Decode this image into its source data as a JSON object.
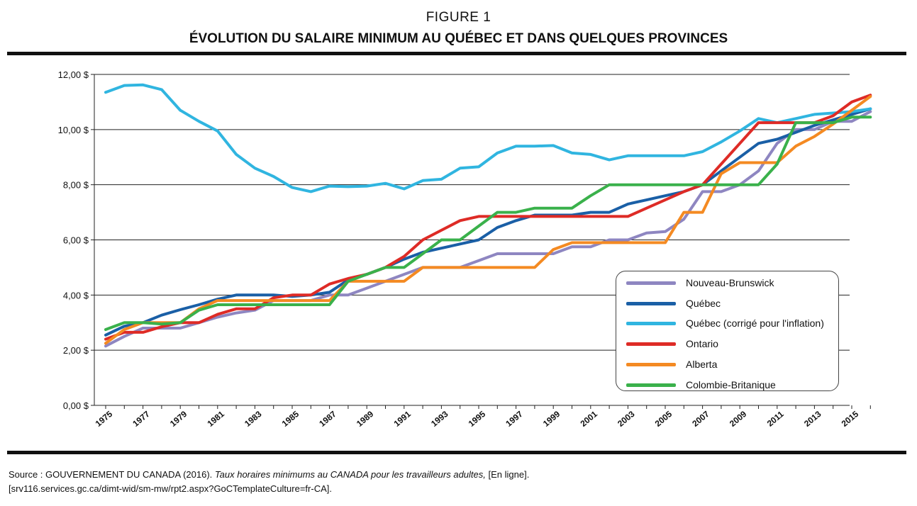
{
  "figure_label": "FIGURE 1",
  "title": "ÉVOLUTION DU SALAIRE MINIMUM AU QUÉBEC ET DANS QUELQUES PROVINCES",
  "source": {
    "prefix": "Source : GOUVERNEMENT DU CANADA (2016). ",
    "italic": "Taux horaires minimums au CANADA pour les travailleurs adultes,",
    "suffix": " [En ligne].",
    "line2": "[srv116.services.gc.ca/dimt-wid/sm-mw/rpt2.aspx?GoCTemplateCulture=fr-CA]."
  },
  "chart_data": {
    "type": "line",
    "title": "ÉVOLUTION DU SALAIRE MINIMUM AU QUÉBEC ET DANS QUELQUES PROVINCES",
    "xlabel": "",
    "ylabel": "",
    "ylim": [
      0,
      12
    ],
    "xlim": [
      1975,
      2016
    ],
    "y_ticks": [
      0,
      2,
      4,
      6,
      8,
      10,
      12
    ],
    "y_tick_labels": [
      "0,00 $",
      "2,00 $",
      "4,00 $",
      "6,00 $",
      "8,00 $",
      "10,00 $",
      "12,00 $"
    ],
    "x_tick_labels": [
      "1975",
      "1977",
      "1979",
      "1981",
      "1983",
      "1985",
      "1987",
      "1989",
      "1991",
      "1993",
      "1995",
      "1997",
      "1999",
      "2001",
      "2003",
      "2005",
      "2007",
      "2009",
      "2011",
      "2013",
      "2015"
    ],
    "grid": "horizontal",
    "legend_position": "bottom-right",
    "x": [
      1975,
      1976,
      1977,
      1978,
      1979,
      1980,
      1981,
      1982,
      1983,
      1984,
      1985,
      1986,
      1987,
      1988,
      1989,
      1990,
      1991,
      1992,
      1993,
      1994,
      1995,
      1996,
      1997,
      1998,
      1999,
      2000,
      2001,
      2002,
      2003,
      2004,
      2005,
      2006,
      2007,
      2008,
      2009,
      2010,
      2011,
      2012,
      2013,
      2014,
      2015,
      2016
    ],
    "series": [
      {
        "name": "Nouveau-Brunswick",
        "color": "#8e86c1",
        "values": [
          2.15,
          2.5,
          2.8,
          2.8,
          2.8,
          3.0,
          3.2,
          3.35,
          3.45,
          3.8,
          3.8,
          3.8,
          4.0,
          4.0,
          4.25,
          4.5,
          4.75,
          5.0,
          5.0,
          5.0,
          5.25,
          5.5,
          5.5,
          5.5,
          5.5,
          5.75,
          5.75,
          6.0,
          6.0,
          6.25,
          6.3,
          6.75,
          7.75,
          7.75,
          8.0,
          8.5,
          9.5,
          10.0,
          10.0,
          10.3,
          10.3,
          10.65
        ]
      },
      {
        "name": "Québec",
        "color": "#1a5fa6",
        "values": [
          2.55,
          2.87,
          3.0,
          3.27,
          3.47,
          3.65,
          3.85,
          4.0,
          4.0,
          4.0,
          3.95,
          4.0,
          4.1,
          4.55,
          4.75,
          5.0,
          5.3,
          5.55,
          5.7,
          5.85,
          6.0,
          6.45,
          6.7,
          6.9,
          6.9,
          6.9,
          7.0,
          7.0,
          7.3,
          7.45,
          7.6,
          7.75,
          8.0,
          8.5,
          9.0,
          9.5,
          9.65,
          9.9,
          10.15,
          10.35,
          10.55,
          10.75
        ]
      },
      {
        "name": "Québec (corrigé pour l'inflation)",
        "color": "#30b5e0",
        "values": [
          11.35,
          11.6,
          11.62,
          11.45,
          10.7,
          10.3,
          9.95,
          9.1,
          8.6,
          8.3,
          7.9,
          7.75,
          7.95,
          7.93,
          7.95,
          8.05,
          7.85,
          8.15,
          8.2,
          8.6,
          8.65,
          9.15,
          9.4,
          9.4,
          9.42,
          9.15,
          9.1,
          8.9,
          9.05,
          9.05,
          9.05,
          9.05,
          9.2,
          9.55,
          9.95,
          10.4,
          10.25,
          10.4,
          10.55,
          10.6,
          10.65,
          10.75
        ]
      },
      {
        "name": "Ontario",
        "color": "#de2b26",
        "values": [
          2.4,
          2.65,
          2.65,
          2.85,
          3.0,
          3.0,
          3.3,
          3.5,
          3.5,
          3.9,
          4.0,
          4.0,
          4.4,
          4.6,
          4.75,
          5.0,
          5.4,
          6.0,
          6.35,
          6.7,
          6.85,
          6.85,
          6.85,
          6.85,
          6.85,
          6.85,
          6.85,
          6.85,
          6.85,
          7.15,
          7.45,
          7.75,
          8.0,
          8.75,
          9.5,
          10.25,
          10.25,
          10.25,
          10.25,
          10.5,
          11.0,
          11.25
        ]
      },
      {
        "name": "Alberta",
        "color": "#f48a22",
        "values": [
          2.25,
          2.75,
          3.0,
          3.0,
          3.0,
          3.5,
          3.8,
          3.8,
          3.8,
          3.8,
          3.8,
          3.8,
          3.8,
          4.5,
          4.5,
          4.5,
          4.5,
          5.0,
          5.0,
          5.0,
          5.0,
          5.0,
          5.0,
          5.0,
          5.65,
          5.9,
          5.9,
          5.9,
          5.9,
          5.9,
          5.9,
          7.0,
          7.0,
          8.4,
          8.8,
          8.8,
          8.8,
          9.4,
          9.75,
          10.2,
          10.7,
          11.2
        ]
      },
      {
        "name": "Colombie-Britanique",
        "color": "#3ab14b",
        "values": [
          2.75,
          3.0,
          3.0,
          2.95,
          3.0,
          3.45,
          3.65,
          3.65,
          3.65,
          3.65,
          3.65,
          3.65,
          3.65,
          4.5,
          4.75,
          5.0,
          5.0,
          5.5,
          6.0,
          6.0,
          6.5,
          7.0,
          7.0,
          7.15,
          7.15,
          7.15,
          7.6,
          8.0,
          8.0,
          8.0,
          8.0,
          8.0,
          8.0,
          8.0,
          8.0,
          8.0,
          8.75,
          10.25,
          10.25,
          10.25,
          10.45,
          10.45
        ]
      }
    ]
  }
}
